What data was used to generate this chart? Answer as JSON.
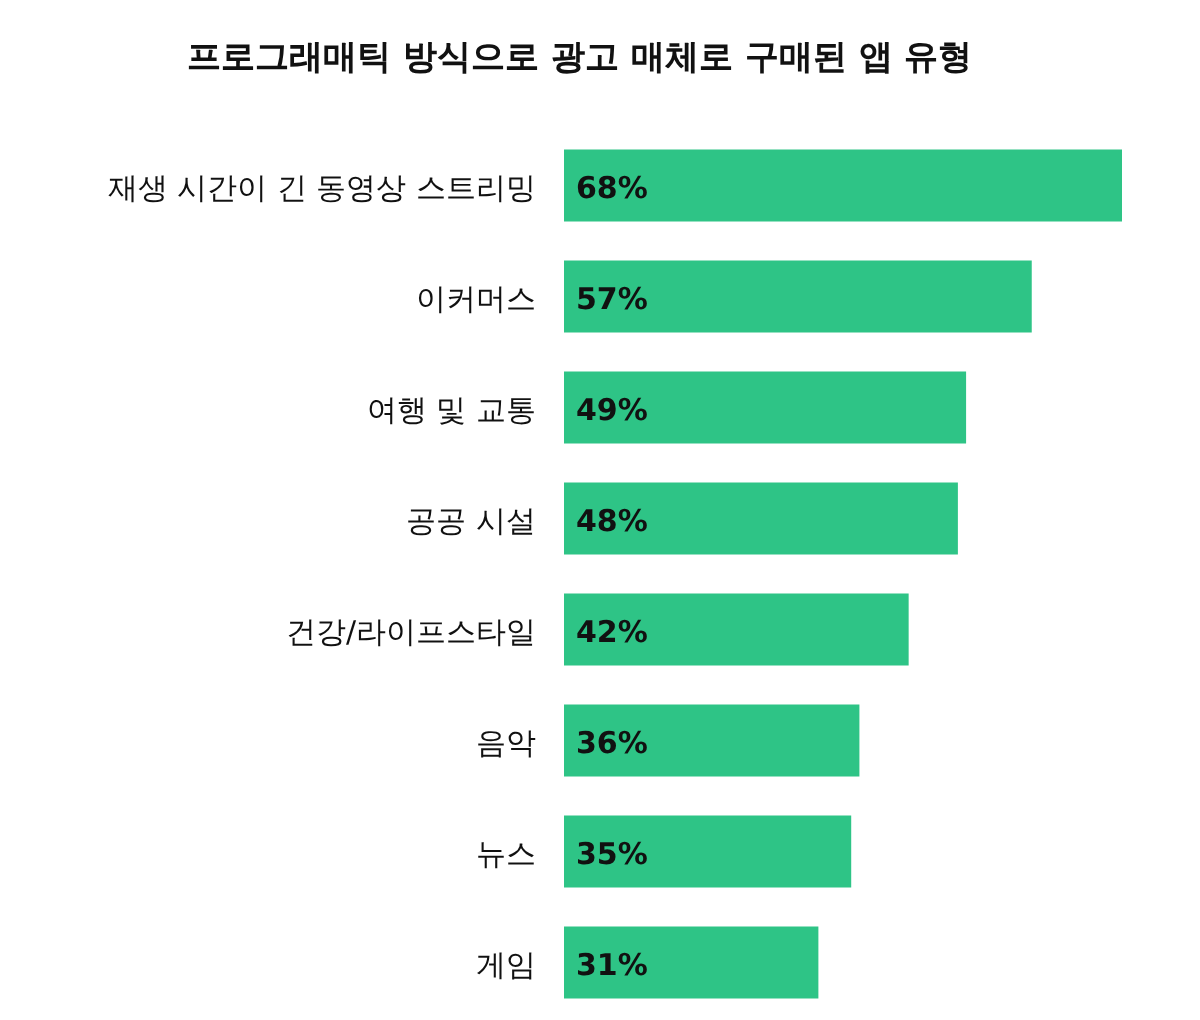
{
  "chart_data": {
    "type": "bar",
    "orientation": "horizontal",
    "title": "프로그래매틱 방식으로 광고 매체로 구매된 앱 유형",
    "categories": [
      "재생 시간이 긴 동영상 스트리밍",
      "이커머스",
      "여행 및 교통",
      "공공 시설",
      "건강/라이프스타일",
      "음악",
      "뉴스",
      "게임"
    ],
    "values": [
      68,
      57,
      49,
      48,
      42,
      36,
      35,
      31
    ],
    "value_labels": [
      "68%",
      "57%",
      "49%",
      "48%",
      "42%",
      "36%",
      "35%",
      "31%"
    ],
    "color": "#2ec486"
  }
}
